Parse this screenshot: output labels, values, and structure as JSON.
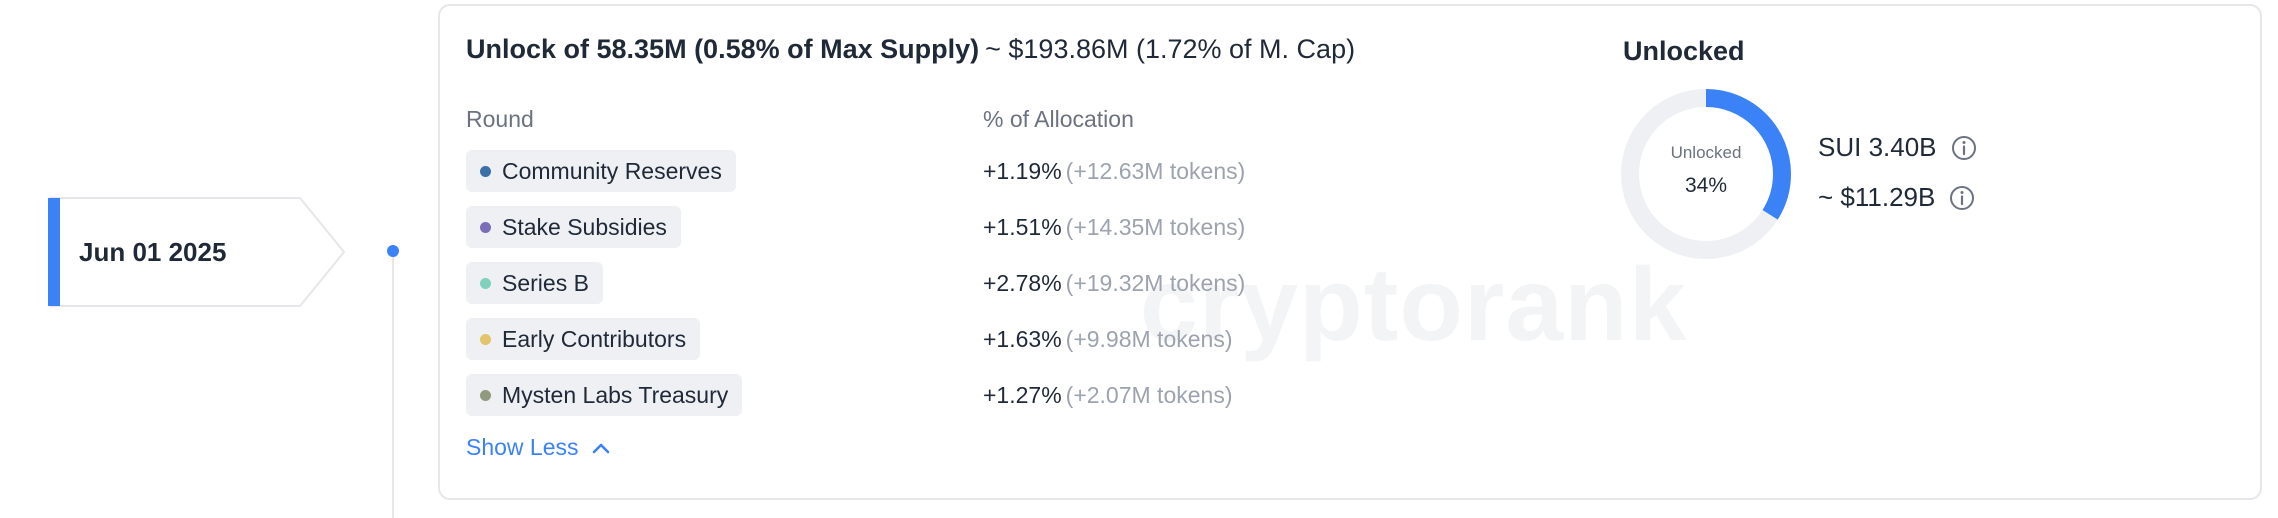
{
  "date": "Jun 01 2025",
  "heading": {
    "unlock": "Unlock of 58.35M (0.58% of Max Supply)",
    "approx": "~ $193.86M (1.72% of M. Cap)"
  },
  "columns": {
    "round": "Round",
    "allocation": "% of Allocation"
  },
  "rounds": [
    {
      "name": "Community Reserves",
      "pct": "+1.19%",
      "tokens": "(+12.63M tokens)",
      "color": "#3b6fa8"
    },
    {
      "name": "Stake Subsidies",
      "pct": "+1.51%",
      "tokens": "(+14.35M tokens)",
      "color": "#7b6db8"
    },
    {
      "name": "Series B",
      "pct": "+2.78%",
      "tokens": "(+19.32M tokens)",
      "color": "#7fd1bd"
    },
    {
      "name": "Early Contributors",
      "pct": "+1.63%",
      "tokens": "(+9.98M tokens)",
      "color": "#e2c46a"
    },
    {
      "name": "Mysten Labs Treasury",
      "pct": "+1.27%",
      "tokens": "(+2.07M tokens)",
      "color": "#8f9a7f"
    }
  ],
  "show_less": "Show Less",
  "unlocked": {
    "title": "Unlocked",
    "label": "Unlocked",
    "percent_text": "34%",
    "fraction": 0.34,
    "amount": "SUI 3.40B",
    "value": "~ $11.29B"
  },
  "watermark": "cryptorank",
  "colors": {
    "accent": "#3b82f6",
    "track": "#eef0f4"
  }
}
